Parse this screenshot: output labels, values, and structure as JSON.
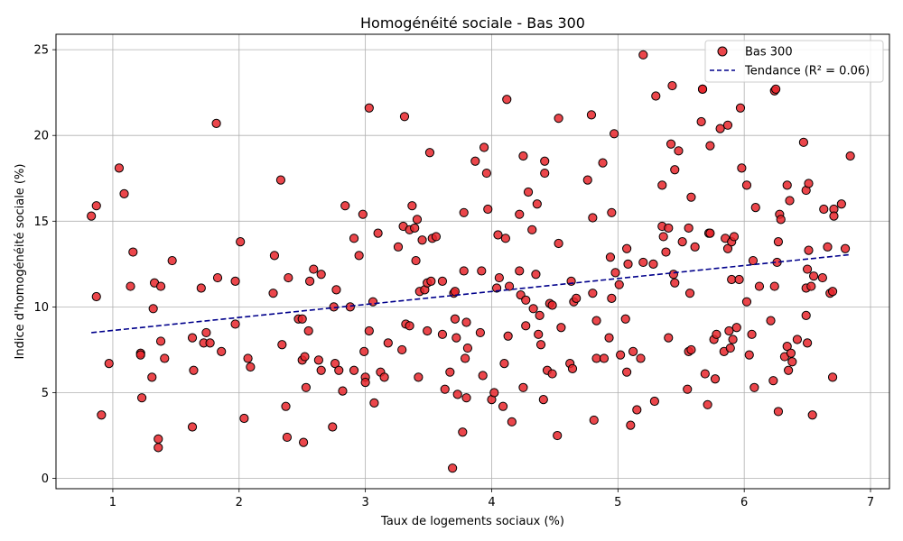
{
  "chart_data": {
    "type": "scatter",
    "title": "Homogénéité sociale - Bas 300",
    "xlabel": "Taux de logements sociaux (%)",
    "ylabel": "Indice d'homogénéité sociale (%)",
    "xlim": [
      0.55,
      7.15
    ],
    "ylim": [
      -0.6,
      25.9
    ],
    "xticks": [
      1,
      2,
      3,
      4,
      5,
      6,
      7
    ],
    "yticks": [
      0,
      5,
      10,
      15,
      20,
      25
    ],
    "grid": true,
    "legend_position": "top-right",
    "series": [
      {
        "name": "Bas 300",
        "kind": "scatter",
        "color": "#e8262b",
        "edge_color": "#000000",
        "points": [
          [
            0.83,
            15.3
          ],
          [
            0.87,
            15.9
          ],
          [
            0.87,
            10.6
          ],
          [
            0.91,
            3.7
          ],
          [
            0.97,
            6.7
          ],
          [
            1.05,
            18.1
          ],
          [
            1.09,
            16.6
          ],
          [
            1.14,
            11.2
          ],
          [
            1.16,
            13.2
          ],
          [
            1.22,
            7.3
          ],
          [
            1.22,
            7.2
          ],
          [
            1.23,
            4.7
          ],
          [
            1.31,
            5.9
          ],
          [
            1.32,
            9.9
          ],
          [
            1.33,
            11.4
          ],
          [
            1.36,
            2.3
          ],
          [
            1.36,
            1.8
          ],
          [
            1.38,
            11.2
          ],
          [
            1.38,
            8.0
          ],
          [
            1.41,
            7.0
          ],
          [
            1.47,
            12.7
          ],
          [
            1.63,
            8.2
          ],
          [
            1.63,
            3.0
          ],
          [
            1.64,
            6.3
          ],
          [
            1.7,
            11.1
          ],
          [
            1.72,
            7.9
          ],
          [
            1.74,
            8.5
          ],
          [
            1.77,
            7.9
          ],
          [
            1.82,
            20.7
          ],
          [
            1.83,
            11.7
          ],
          [
            1.86,
            7.4
          ],
          [
            1.97,
            11.5
          ],
          [
            1.97,
            9.0
          ],
          [
            2.01,
            13.8
          ],
          [
            2.04,
            3.5
          ],
          [
            2.07,
            7.0
          ],
          [
            2.09,
            6.5
          ],
          [
            2.27,
            10.8
          ],
          [
            2.28,
            13.0
          ],
          [
            2.33,
            17.4
          ],
          [
            2.34,
            7.8
          ],
          [
            2.37,
            4.2
          ],
          [
            2.38,
            2.4
          ],
          [
            2.39,
            11.7
          ],
          [
            2.47,
            9.3
          ],
          [
            2.5,
            9.3
          ],
          [
            2.5,
            6.9
          ],
          [
            2.51,
            2.1
          ],
          [
            2.52,
            7.1
          ],
          [
            2.53,
            5.3
          ],
          [
            2.55,
            8.6
          ],
          [
            2.56,
            11.5
          ],
          [
            2.59,
            12.2
          ],
          [
            2.63,
            6.9
          ],
          [
            2.65,
            6.3
          ],
          [
            2.65,
            11.9
          ],
          [
            2.74,
            3.0
          ],
          [
            2.75,
            10.0
          ],
          [
            2.76,
            6.7
          ],
          [
            2.77,
            11.0
          ],
          [
            2.79,
            6.3
          ],
          [
            2.82,
            5.1
          ],
          [
            2.84,
            15.9
          ],
          [
            2.88,
            10.0
          ],
          [
            2.91,
            14.0
          ],
          [
            2.91,
            6.3
          ],
          [
            2.95,
            13.0
          ],
          [
            2.98,
            15.4
          ],
          [
            2.99,
            7.4
          ],
          [
            3.0,
            5.9
          ],
          [
            3.0,
            5.6
          ],
          [
            3.03,
            21.6
          ],
          [
            3.03,
            8.6
          ],
          [
            3.06,
            10.3
          ],
          [
            3.07,
            4.4
          ],
          [
            3.1,
            14.3
          ],
          [
            3.12,
            6.2
          ],
          [
            3.15,
            5.9
          ],
          [
            3.18,
            7.9
          ],
          [
            3.26,
            13.5
          ],
          [
            3.29,
            7.5
          ],
          [
            3.3,
            14.7
          ],
          [
            3.31,
            21.1
          ],
          [
            3.32,
            9.0
          ],
          [
            3.35,
            8.9
          ],
          [
            3.35,
            14.5
          ],
          [
            3.37,
            15.9
          ],
          [
            3.39,
            14.6
          ],
          [
            3.4,
            12.7
          ],
          [
            3.41,
            15.1
          ],
          [
            3.42,
            5.9
          ],
          [
            3.43,
            10.9
          ],
          [
            3.45,
            13.9
          ],
          [
            3.47,
            11.0
          ],
          [
            3.49,
            11.4
          ],
          [
            3.49,
            8.6
          ],
          [
            3.51,
            19.0
          ],
          [
            3.52,
            11.5
          ],
          [
            3.53,
            14.0
          ],
          [
            3.56,
            14.1
          ],
          [
            3.61,
            11.5
          ],
          [
            3.61,
            8.4
          ],
          [
            3.63,
            5.2
          ],
          [
            3.67,
            6.2
          ],
          [
            3.69,
            0.6
          ],
          [
            3.7,
            10.8
          ],
          [
            3.71,
            10.9
          ],
          [
            3.71,
            9.3
          ],
          [
            3.72,
            8.2
          ],
          [
            3.73,
            4.9
          ],
          [
            3.77,
            2.7
          ],
          [
            3.78,
            12.1
          ],
          [
            3.78,
            15.5
          ],
          [
            3.79,
            7.0
          ],
          [
            3.8,
            4.7
          ],
          [
            3.8,
            9.1
          ],
          [
            3.81,
            7.6
          ],
          [
            3.87,
            18.5
          ],
          [
            3.91,
            8.5
          ],
          [
            3.92,
            12.1
          ],
          [
            3.93,
            6.0
          ],
          [
            3.94,
            19.3
          ],
          [
            3.96,
            17.8
          ],
          [
            3.97,
            15.7
          ],
          [
            4.0,
            4.6
          ],
          [
            4.02,
            5.0
          ],
          [
            4.04,
            11.1
          ],
          [
            4.05,
            14.2
          ],
          [
            4.06,
            11.7
          ],
          [
            4.09,
            4.2
          ],
          [
            4.1,
            6.7
          ],
          [
            4.11,
            14.0
          ],
          [
            4.12,
            22.1
          ],
          [
            4.13,
            8.3
          ],
          [
            4.14,
            11.2
          ],
          [
            4.16,
            3.3
          ],
          [
            4.22,
            15.4
          ],
          [
            4.22,
            12.1
          ],
          [
            4.23,
            10.7
          ],
          [
            4.25,
            18.8
          ],
          [
            4.25,
            5.3
          ],
          [
            4.27,
            8.9
          ],
          [
            4.27,
            10.4
          ],
          [
            4.29,
            16.7
          ],
          [
            4.32,
            14.5
          ],
          [
            4.33,
            9.9
          ],
          [
            4.35,
            11.9
          ],
          [
            4.36,
            16.0
          ],
          [
            4.37,
            8.4
          ],
          [
            4.38,
            9.5
          ],
          [
            4.39,
            7.8
          ],
          [
            4.41,
            4.6
          ],
          [
            4.42,
            18.5
          ],
          [
            4.42,
            17.8
          ],
          [
            4.44,
            6.3
          ],
          [
            4.46,
            10.2
          ],
          [
            4.48,
            6.1
          ],
          [
            4.48,
            10.1
          ],
          [
            4.52,
            2.5
          ],
          [
            4.53,
            13.7
          ],
          [
            4.53,
            21.0
          ],
          [
            4.55,
            8.8
          ],
          [
            4.62,
            6.7
          ],
          [
            4.63,
            11.5
          ],
          [
            4.64,
            6.4
          ],
          [
            4.65,
            10.3
          ],
          [
            4.67,
            10.5
          ],
          [
            4.76,
            17.4
          ],
          [
            4.79,
            21.2
          ],
          [
            4.8,
            15.2
          ],
          [
            4.8,
            10.8
          ],
          [
            4.81,
            3.4
          ],
          [
            4.83,
            7.0
          ],
          [
            4.83,
            9.2
          ],
          [
            4.88,
            18.4
          ],
          [
            4.89,
            7.0
          ],
          [
            4.93,
            8.2
          ],
          [
            4.94,
            12.9
          ],
          [
            4.95,
            15.5
          ],
          [
            4.95,
            10.5
          ],
          [
            4.97,
            20.1
          ],
          [
            4.98,
            12.0
          ],
          [
            5.01,
            11.3
          ],
          [
            5.02,
            7.2
          ],
          [
            5.06,
            9.3
          ],
          [
            5.07,
            13.4
          ],
          [
            5.07,
            6.2
          ],
          [
            5.08,
            12.5
          ],
          [
            5.1,
            3.1
          ],
          [
            5.12,
            7.4
          ],
          [
            5.15,
            4.0
          ],
          [
            5.18,
            7.0
          ],
          [
            5.2,
            24.7
          ],
          [
            5.2,
            12.6
          ],
          [
            5.28,
            12.5
          ],
          [
            5.29,
            4.5
          ],
          [
            5.3,
            22.3
          ],
          [
            5.35,
            17.1
          ],
          [
            5.35,
            14.7
          ],
          [
            5.36,
            14.1
          ],
          [
            5.38,
            13.2
          ],
          [
            5.4,
            14.6
          ],
          [
            5.4,
            8.2
          ],
          [
            5.42,
            19.5
          ],
          [
            5.43,
            22.9
          ],
          [
            5.44,
            11.9
          ],
          [
            5.45,
            11.4
          ],
          [
            5.45,
            18.0
          ],
          [
            5.48,
            19.1
          ],
          [
            5.51,
            13.8
          ],
          [
            5.55,
            5.2
          ],
          [
            5.56,
            14.6
          ],
          [
            5.56,
            7.4
          ],
          [
            5.57,
            10.8
          ],
          [
            5.58,
            7.5
          ],
          [
            5.58,
            16.4
          ],
          [
            5.61,
            13.5
          ],
          [
            5.66,
            20.8
          ],
          [
            5.67,
            22.7
          ],
          [
            5.67,
            22.7
          ],
          [
            5.69,
            6.1
          ],
          [
            5.71,
            4.3
          ],
          [
            5.72,
            14.3
          ],
          [
            5.73,
            14.3
          ],
          [
            5.73,
            19.4
          ],
          [
            5.76,
            8.1
          ],
          [
            5.77,
            5.8
          ],
          [
            5.78,
            8.4
          ],
          [
            5.81,
            20.4
          ],
          [
            5.84,
            7.4
          ],
          [
            5.85,
            14.0
          ],
          [
            5.87,
            20.6
          ],
          [
            5.87,
            13.4
          ],
          [
            5.88,
            8.6
          ],
          [
            5.89,
            7.6
          ],
          [
            5.9,
            11.6
          ],
          [
            5.9,
            13.8
          ],
          [
            5.91,
            8.1
          ],
          [
            5.92,
            14.1
          ],
          [
            5.94,
            8.8
          ],
          [
            5.96,
            11.6
          ],
          [
            5.97,
            21.6
          ],
          [
            5.98,
            18.1
          ],
          [
            6.02,
            10.3
          ],
          [
            6.02,
            17.1
          ],
          [
            6.04,
            7.2
          ],
          [
            6.06,
            8.4
          ],
          [
            6.07,
            12.7
          ],
          [
            6.08,
            5.3
          ],
          [
            6.09,
            15.8
          ],
          [
            6.12,
            11.2
          ],
          [
            6.21,
            9.2
          ],
          [
            6.23,
            5.7
          ],
          [
            6.24,
            11.2
          ],
          [
            6.24,
            22.6
          ],
          [
            6.25,
            22.7
          ],
          [
            6.26,
            12.6
          ],
          [
            6.27,
            13.8
          ],
          [
            6.27,
            3.9
          ],
          [
            6.28,
            15.4
          ],
          [
            6.29,
            15.1
          ],
          [
            6.32,
            7.1
          ],
          [
            6.34,
            17.1
          ],
          [
            6.34,
            7.7
          ],
          [
            6.35,
            6.3
          ],
          [
            6.36,
            16.2
          ],
          [
            6.37,
            7.3
          ],
          [
            6.38,
            6.8
          ],
          [
            6.42,
            8.1
          ],
          [
            6.47,
            19.6
          ],
          [
            6.49,
            16.8
          ],
          [
            6.49,
            11.1
          ],
          [
            6.49,
            9.5
          ],
          [
            6.5,
            12.2
          ],
          [
            6.5,
            7.9
          ],
          [
            6.51,
            13.3
          ],
          [
            6.51,
            17.2
          ],
          [
            6.53,
            11.2
          ],
          [
            6.54,
            3.7
          ],
          [
            6.55,
            11.8
          ],
          [
            6.62,
            11.7
          ],
          [
            6.63,
            15.7
          ],
          [
            6.66,
            13.5
          ],
          [
            6.68,
            10.8
          ],
          [
            6.7,
            10.9
          ],
          [
            6.7,
            5.9
          ],
          [
            6.71,
            15.7
          ],
          [
            6.71,
            15.3
          ],
          [
            6.77,
            16.0
          ],
          [
            6.8,
            13.4
          ],
          [
            6.84,
            18.8
          ]
        ]
      },
      {
        "name": "Tendance (R² = 0.06)",
        "kind": "line",
        "color": "#00008b",
        "style": "dashed",
        "points": [
          [
            0.83,
            8.5
          ],
          [
            6.84,
            13.05
          ]
        ]
      }
    ]
  }
}
